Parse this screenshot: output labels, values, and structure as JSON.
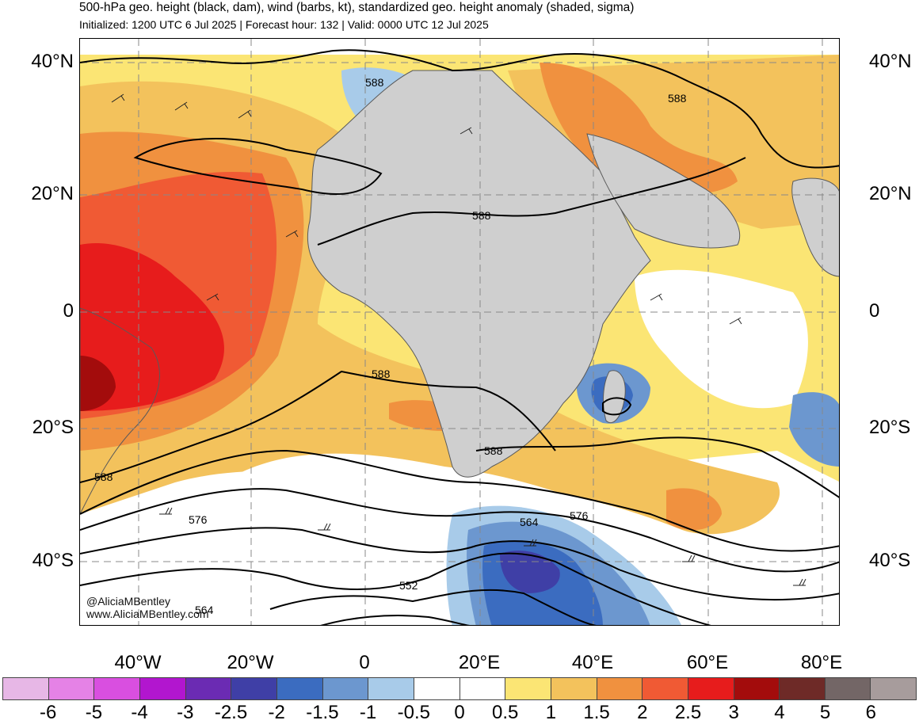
{
  "header": {
    "title": "500-hPa geo. height (black, dam), wind (barbs, kt), standardized geo. height anomaly (shaded, sigma)",
    "subtitle": "Initialized: 1200 UTC 6 Jul 2025 | Forecast hour: 132 | Valid: 0000 UTC 12 Jul 2025"
  },
  "map": {
    "lat_labels": [
      "40°N",
      "20°N",
      "0",
      "20°S",
      "40°S"
    ],
    "lon_labels": [
      "40°W",
      "20°W",
      "0",
      "20°E",
      "40°E",
      "60°E",
      "80°E"
    ],
    "contour_labels": [
      "588",
      "588",
      "588",
      "588",
      "588",
      "588",
      "576",
      "576",
      "564",
      "564",
      "552"
    ],
    "credit_handle": "@AliciaMBentley",
    "credit_url": "www.AliciaMBentley.com",
    "colors": {
      "land_gray": "#cfcfcf",
      "contour": "#000000",
      "border": "#5a5a5a"
    }
  },
  "colorbar": {
    "ticks": [
      "-6",
      "-5",
      "-4",
      "-3",
      "-2.5",
      "-2",
      "-1.5",
      "-1",
      "-0.5",
      "0",
      "0.5",
      "1",
      "1.5",
      "2",
      "2.5",
      "3",
      "4",
      "5",
      "6"
    ],
    "colors": [
      "#e7b7e6",
      "#e582e6",
      "#d94fe0",
      "#b216cf",
      "#6b2bb3",
      "#3f3fa6",
      "#3b6cc0",
      "#6c97cf",
      "#a8cbe9",
      "#ffffff",
      "#ffffff",
      "#fbe574",
      "#f3c25c",
      "#f0913f",
      "#f05a34",
      "#e71c1c",
      "#a30c0c",
      "#6e2a27",
      "#736666",
      "#a79c9c"
    ]
  }
}
